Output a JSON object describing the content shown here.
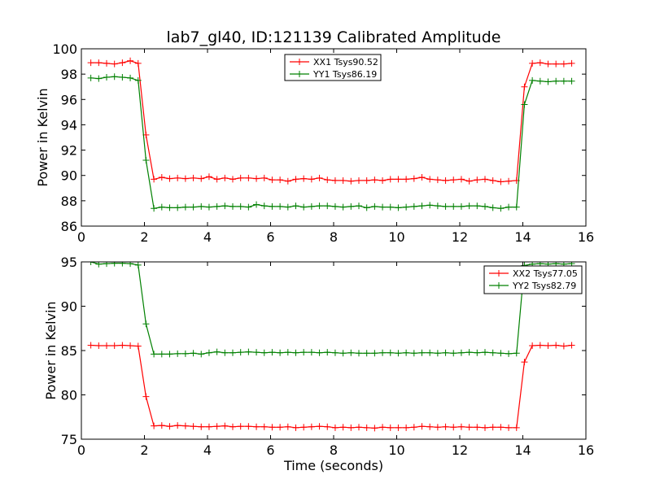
{
  "title": "lab7_gl40, ID:121139 Calibrated Amplitude",
  "chart_data": [
    {
      "type": "line",
      "ylabel": "Power in Kelvin",
      "xlabel": "",
      "xlim": [
        0,
        16
      ],
      "ylim": [
        86,
        100
      ],
      "xticks": [
        0,
        2,
        4,
        6,
        8,
        10,
        12,
        14,
        16
      ],
      "yticks": [
        86,
        88,
        90,
        92,
        94,
        96,
        98,
        100
      ],
      "legend_position": "top-center",
      "x": [
        0.3,
        0.55,
        0.8,
        1.05,
        1.3,
        1.55,
        1.8,
        2.05,
        2.3,
        2.55,
        2.8,
        3.05,
        3.3,
        3.55,
        3.8,
        4.05,
        4.3,
        4.55,
        4.8,
        5.05,
        5.3,
        5.55,
        5.8,
        6.05,
        6.3,
        6.55,
        6.8,
        7.05,
        7.3,
        7.55,
        7.8,
        8.05,
        8.3,
        8.55,
        8.8,
        9.05,
        9.3,
        9.55,
        9.8,
        10.05,
        10.3,
        10.55,
        10.8,
        11.05,
        11.3,
        11.55,
        11.8,
        12.05,
        12.3,
        12.55,
        12.8,
        13.05,
        13.3,
        13.55,
        13.8,
        14.05,
        14.3,
        14.55,
        14.8,
        15.05,
        15.3,
        15.55
      ],
      "series": [
        {
          "name": "XX1 Tsys90.52",
          "color": "#ff0000",
          "values": [
            98.9,
            98.9,
            98.85,
            98.8,
            98.9,
            99.05,
            98.85,
            93.2,
            89.7,
            89.85,
            89.75,
            89.8,
            89.75,
            89.8,
            89.75,
            89.9,
            89.7,
            89.8,
            89.7,
            89.8,
            89.8,
            89.75,
            89.8,
            89.65,
            89.65,
            89.55,
            89.7,
            89.75,
            89.7,
            89.8,
            89.65,
            89.6,
            89.6,
            89.55,
            89.6,
            89.6,
            89.65,
            89.6,
            89.7,
            89.7,
            89.7,
            89.75,
            89.85,
            89.7,
            89.65,
            89.6,
            89.65,
            89.7,
            89.55,
            89.65,
            89.7,
            89.6,
            89.5,
            89.55,
            89.6,
            97.0,
            98.85,
            98.9,
            98.8,
            98.8,
            98.8,
            98.85
          ]
        },
        {
          "name": "YY1 Tsys86.19",
          "color": "#008000",
          "values": [
            97.7,
            97.65,
            97.75,
            97.8,
            97.75,
            97.7,
            97.5,
            91.2,
            87.4,
            87.5,
            87.45,
            87.45,
            87.5,
            87.5,
            87.55,
            87.5,
            87.55,
            87.6,
            87.55,
            87.55,
            87.5,
            87.7,
            87.6,
            87.55,
            87.55,
            87.5,
            87.6,
            87.5,
            87.55,
            87.6,
            87.6,
            87.55,
            87.5,
            87.55,
            87.6,
            87.45,
            87.55,
            87.5,
            87.5,
            87.45,
            87.5,
            87.55,
            87.6,
            87.65,
            87.6,
            87.55,
            87.55,
            87.55,
            87.6,
            87.6,
            87.55,
            87.45,
            87.4,
            87.5,
            87.5,
            95.6,
            97.5,
            97.45,
            97.4,
            97.45,
            97.45,
            97.45
          ]
        }
      ]
    },
    {
      "type": "line",
      "ylabel": "Power in Kelvin",
      "xlabel": "Time (seconds)",
      "xlim": [
        0,
        16
      ],
      "ylim": [
        75,
        95
      ],
      "xticks": [
        0,
        2,
        4,
        6,
        8,
        10,
        12,
        14,
        16
      ],
      "yticks": [
        75,
        80,
        85,
        90,
        95
      ],
      "legend_position": "top-right",
      "x": [
        0.3,
        0.55,
        0.8,
        1.05,
        1.3,
        1.55,
        1.8,
        2.05,
        2.3,
        2.55,
        2.8,
        3.05,
        3.3,
        3.55,
        3.8,
        4.05,
        4.3,
        4.55,
        4.8,
        5.05,
        5.3,
        5.55,
        5.8,
        6.05,
        6.3,
        6.55,
        6.8,
        7.05,
        7.3,
        7.55,
        7.8,
        8.05,
        8.3,
        8.55,
        8.8,
        9.05,
        9.3,
        9.55,
        9.8,
        10.05,
        10.3,
        10.55,
        10.8,
        11.05,
        11.3,
        11.55,
        11.8,
        12.05,
        12.3,
        12.55,
        12.8,
        13.05,
        13.3,
        13.55,
        13.8,
        14.05,
        14.3,
        14.55,
        14.8,
        15.05,
        15.3,
        15.55
      ],
      "series": [
        {
          "name": "XX2 Tsys77.05",
          "color": "#ff0000",
          "values": [
            85.6,
            85.55,
            85.55,
            85.55,
            85.6,
            85.55,
            85.5,
            79.8,
            76.5,
            76.55,
            76.45,
            76.55,
            76.5,
            76.45,
            76.4,
            76.4,
            76.45,
            76.5,
            76.4,
            76.45,
            76.45,
            76.4,
            76.4,
            76.35,
            76.35,
            76.4,
            76.3,
            76.35,
            76.4,
            76.45,
            76.4,
            76.3,
            76.35,
            76.3,
            76.35,
            76.3,
            76.25,
            76.35,
            76.3,
            76.3,
            76.3,
            76.35,
            76.45,
            76.4,
            76.35,
            76.4,
            76.35,
            76.4,
            76.35,
            76.35,
            76.3,
            76.35,
            76.35,
            76.3,
            76.3,
            83.7,
            85.55,
            85.6,
            85.55,
            85.6,
            85.5,
            85.6
          ]
        },
        {
          "name": "YY2 Tsys82.79",
          "color": "#008000",
          "values": [
            95.0,
            94.75,
            94.8,
            94.85,
            94.85,
            94.8,
            94.65,
            88.0,
            84.6,
            84.6,
            84.6,
            84.65,
            84.65,
            84.7,
            84.6,
            84.75,
            84.85,
            84.75,
            84.75,
            84.8,
            84.85,
            84.8,
            84.75,
            84.8,
            84.75,
            84.8,
            84.75,
            84.8,
            84.8,
            84.75,
            84.8,
            84.75,
            84.7,
            84.75,
            84.7,
            84.7,
            84.7,
            84.75,
            84.75,
            84.7,
            84.75,
            84.7,
            84.75,
            84.75,
            84.7,
            84.75,
            84.7,
            84.75,
            84.8,
            84.75,
            84.8,
            84.75,
            84.7,
            84.65,
            84.7,
            94.6,
            94.75,
            94.8,
            94.75,
            94.8,
            94.75,
            94.8
          ]
        }
      ]
    }
  ]
}
